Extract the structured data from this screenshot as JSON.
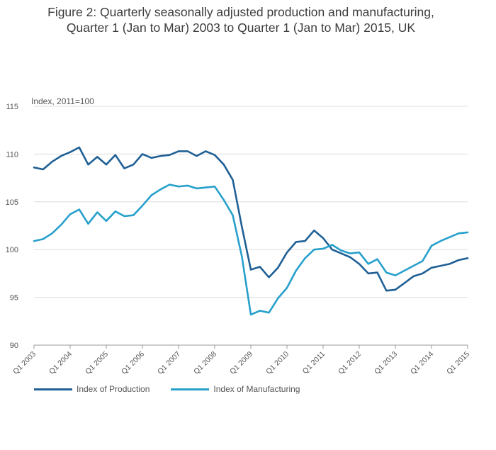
{
  "title_line1": "Figure 2: Quarterly seasonally adjusted production and manufacturing,",
  "title_line2": "Quarter 1 (Jan to Mar) 2003 to Quarter 1 (Jan to Mar) 2015, UK",
  "colors": {
    "production": "#206095",
    "manufacturing": "#27a0cc",
    "grid": "#dddddd",
    "axis": "#999999"
  },
  "chart_data": {
    "type": "line",
    "title": "Figure 2: Quarterly seasonally adjusted production and manufacturing, Quarter 1 (Jan to Mar) 2003 to Quarter 1 (Jan to Mar) 2015, UK",
    "ylabel": "Index, 2011=100",
    "xlabel": "",
    "ylim": [
      90,
      115
    ],
    "yticks": [
      90,
      95,
      100,
      105,
      110,
      115
    ],
    "xtick_labels": [
      "Q1 2003",
      "Q1 2004",
      "Q1 2005",
      "Q1 2006",
      "Q1 2007",
      "Q1 2008",
      "Q1 2009",
      "Q1 2010",
      "Q1 2011",
      "Q1 2012",
      "Q1 2013",
      "Q1 2014",
      "Q1 2015"
    ],
    "grid": true,
    "legend_position": "bottom-left",
    "x": [
      "Q1 2003",
      "Q2 2003",
      "Q3 2003",
      "Q4 2003",
      "Q1 2004",
      "Q2 2004",
      "Q3 2004",
      "Q4 2004",
      "Q1 2005",
      "Q2 2005",
      "Q3 2005",
      "Q4 2005",
      "Q1 2006",
      "Q2 2006",
      "Q3 2006",
      "Q4 2006",
      "Q1 2007",
      "Q2 2007",
      "Q3 2007",
      "Q4 2007",
      "Q1 2008",
      "Q2 2008",
      "Q3 2008",
      "Q4 2008",
      "Q1 2009",
      "Q2 2009",
      "Q3 2009",
      "Q4 2009",
      "Q1 2010",
      "Q2 2010",
      "Q3 2010",
      "Q4 2010",
      "Q1 2011",
      "Q2 2011",
      "Q3 2011",
      "Q4 2011",
      "Q1 2012",
      "Q2 2012",
      "Q3 2012",
      "Q4 2012",
      "Q1 2013",
      "Q2 2013",
      "Q3 2013",
      "Q4 2013",
      "Q1 2014",
      "Q2 2014",
      "Q3 2014",
      "Q4 2014",
      "Q1 2015"
    ],
    "series": [
      {
        "name": "Index of Production",
        "values": [
          108.6,
          108.4,
          109.2,
          109.8,
          110.2,
          110.7,
          108.9,
          109.7,
          108.9,
          109.9,
          108.5,
          108.9,
          110.0,
          109.6,
          109.8,
          109.9,
          110.3,
          110.3,
          109.8,
          110.3,
          109.9,
          108.9,
          107.3,
          102.4,
          97.9,
          98.2,
          97.1,
          98.1,
          99.7,
          100.8,
          100.9,
          102.0,
          101.2,
          100.0,
          99.6,
          99.2,
          98.5,
          97.5,
          97.6,
          95.7,
          95.8,
          96.5,
          97.2,
          97.5,
          98.1,
          98.3,
          98.5,
          98.9,
          99.1
        ]
      },
      {
        "name": "Index of Manufacturing",
        "values": [
          100.9,
          101.1,
          101.7,
          102.6,
          103.7,
          104.2,
          102.7,
          103.9,
          103.0,
          104.0,
          103.5,
          103.6,
          104.6,
          105.7,
          106.3,
          106.8,
          106.6,
          106.7,
          106.4,
          106.5,
          106.6,
          105.2,
          103.6,
          99.3,
          93.2,
          93.6,
          93.4,
          94.9,
          96.0,
          97.8,
          99.1,
          100.0,
          100.1,
          100.5,
          99.9,
          99.6,
          99.7,
          98.5,
          99.0,
          97.6,
          97.3,
          97.8,
          98.3,
          98.8,
          100.4,
          100.9,
          101.3,
          101.7,
          101.8
        ]
      }
    ]
  }
}
